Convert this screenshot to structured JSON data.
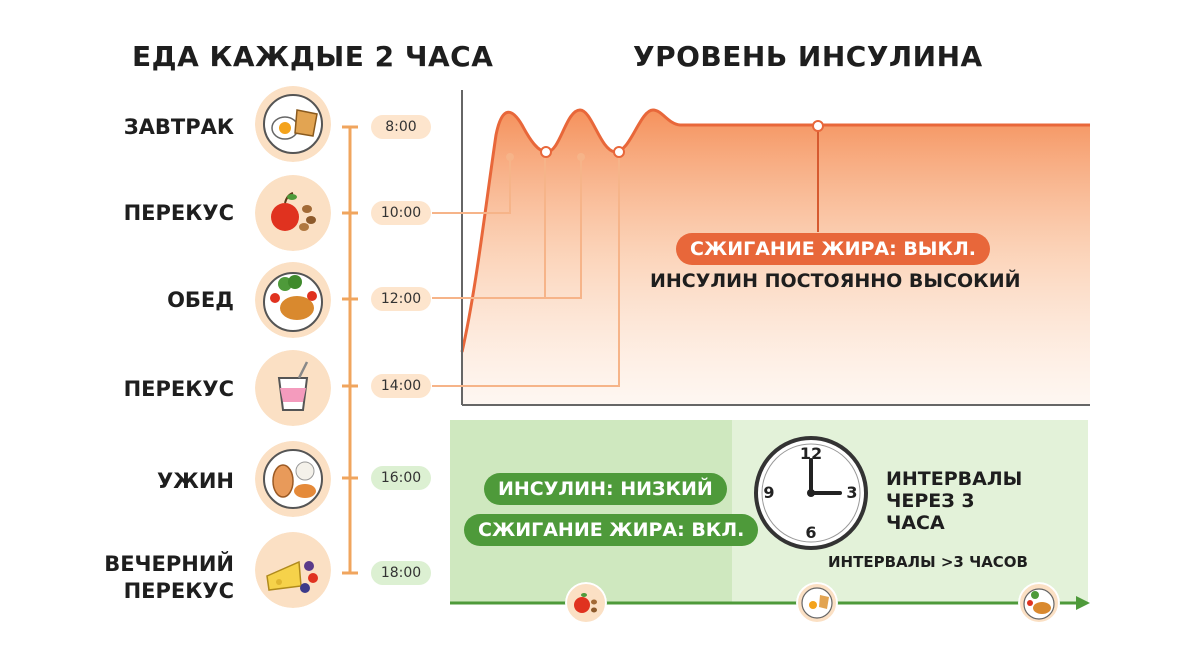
{
  "left_title": "ЕДА КАЖДЫЕ 2 ЧАСА",
  "right_title": "УРОВЕНЬ ИНСУЛИНА",
  "meals": [
    {
      "label": "ЗАВТРАК",
      "time": "8:00",
      "icon": "breakfast-plate-icon"
    },
    {
      "label": "ПЕРЕКУС",
      "time": "10:00",
      "icon": "apple-nuts-icon"
    },
    {
      "label": "ОБЕД",
      "time": "12:00",
      "icon": "chicken-vegetables-icon"
    },
    {
      "label": "ПЕРЕКУС",
      "time": "14:00",
      "icon": "yogurt-cup-icon"
    },
    {
      "label": "УЖИН",
      "time": "16:00",
      "icon": "fish-rice-icon"
    },
    {
      "label": "ВЕЧЕРНИЙ ПЕРЕКУС",
      "time": "18:00",
      "icon": "cheese-berries-icon"
    }
  ],
  "insulin_chart": {
    "fat_burning_off": "СЖИГАНИЕ ЖИРА: ВЫКЛ.",
    "insulin_constant": "ИНСУЛИН ПОСТОЯННО ВЫСОКИЙ"
  },
  "bottom_panel": {
    "insulin_low": "ИНСУЛИН: НИЗКИЙ",
    "fat_burning_on": "СЖИГАНИЕ ЖИРА: ВКЛ.",
    "clock_numbers": {
      "n12": "12",
      "n3": "3",
      "n6": "6",
      "n9": "9"
    },
    "intervals_3h": "ИНТЕРВАЛЫ ЧЕРЕЗ 3 ЧАСА",
    "intervals_more_3h": "ИНТЕРВАЛЫ >3 ЧАСОВ",
    "timeline_icons": [
      "apple-nuts-icon",
      "breakfast-plate-icon",
      "chicken-vegetables-icon"
    ]
  },
  "colors": {
    "orange": "#e8673a",
    "timeline_orange": "#f0a55e",
    "green": "#4e9a3a",
    "green_bg": "#d8eec9",
    "icon_bg": "#fbe0c4"
  }
}
